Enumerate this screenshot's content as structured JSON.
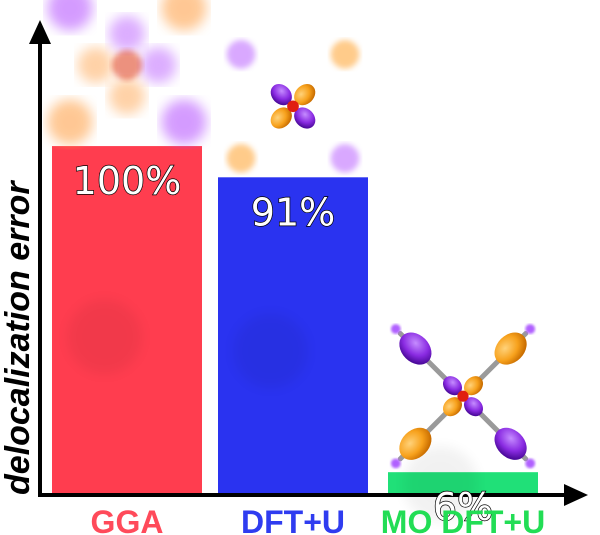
{
  "chart_data": {
    "type": "bar",
    "title": "",
    "xlabel": "",
    "ylabel": "delocalization error",
    "categories": [
      "GGA",
      "DFT+U",
      "MO DFT+U"
    ],
    "values": [
      100,
      91,
      6
    ],
    "value_labels": [
      "100%",
      "91%",
      "6%"
    ],
    "ylim": [
      0,
      130
    ],
    "grid": false,
    "legend": "none",
    "colors": [
      "#ff3d4f",
      "#2a33f0",
      "#20e078"
    ],
    "label_colors": [
      "#ff4a5a",
      "#2f3cf0",
      "#22dd55"
    ]
  },
  "icons": [
    "orbital-isosurface-icon",
    "orbital-isosurface-icon",
    "orbital-isosurface-icon"
  ]
}
